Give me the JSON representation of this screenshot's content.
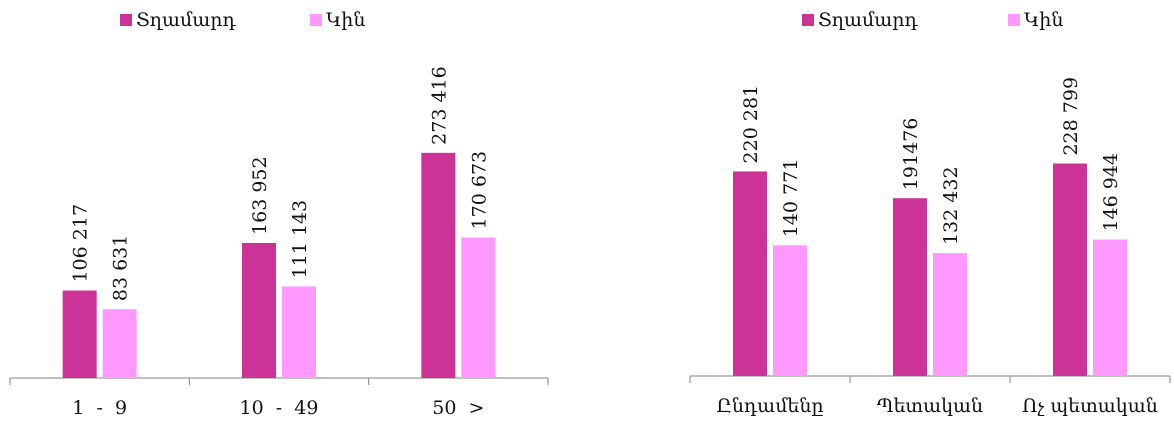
{
  "chart_data": [
    {
      "type": "bar",
      "title": "",
      "xlabel": "",
      "ylabel": "",
      "categories": [
        "1  -  9",
        "10  -  49",
        "50  >"
      ],
      "series": [
        {
          "name": "Տղամարդ",
          "values": [
            106217,
            163952,
            273416
          ],
          "labels": [
            "106 217",
            "163 952",
            "273 416"
          ],
          "color": "#cc3399"
        },
        {
          "name": "Կին",
          "values": [
            83631,
            111143,
            170673
          ],
          "labels": [
            "83 631",
            "111 143",
            "170 673"
          ],
          "color": "#ff99ff"
        }
      ],
      "ylim": [
        0,
        340000
      ],
      "legend_position": "top",
      "grid": false
    },
    {
      "type": "bar",
      "title": "",
      "xlabel": "",
      "ylabel": "",
      "categories": [
        "Ընդամենը",
        "Պետական",
        "Ոչ պետական"
      ],
      "series": [
        {
          "name": "Տղամարդ",
          "values": [
            220281,
            191476,
            228799
          ],
          "labels": [
            "220 281",
            "191476",
            "228 799"
          ],
          "color": "#cc3399"
        },
        {
          "name": "Կին",
          "values": [
            140771,
            132432,
            146944
          ],
          "labels": [
            "140 771",
            "132 432",
            "146 944"
          ],
          "color": "#ff99ff"
        }
      ],
      "ylim": [
        0,
        280000
      ],
      "legend_position": "top",
      "grid": false
    }
  ]
}
